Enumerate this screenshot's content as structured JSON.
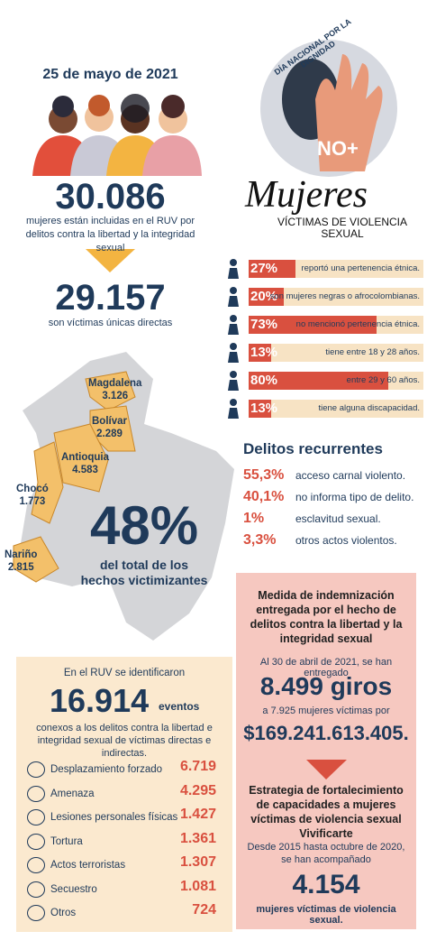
{
  "header": {
    "date": "25 de mayo de 2021",
    "total_women": {
      "number": "30.086",
      "text": "mujeres están incluidas en el RUV por delitos contra la libertad y la integridad sexual"
    },
    "direct_victims": {
      "number": "29.157",
      "text": "son víctimas únicas directas"
    }
  },
  "logo": {
    "arc_text": "DÍA NACIONAL POR LA DIGNIDAD",
    "slogan": "NO+",
    "title": "Mujeres",
    "subtitle": "VÍCTIMAS DE VIOLENCIA SEXUAL"
  },
  "profile": [
    {
      "value": 27,
      "label": "27%",
      "text": "reportó una pertenencia étnica."
    },
    {
      "value": 20,
      "label": "20%",
      "text": "son mujeres negras o afrocolombianas."
    },
    {
      "value": 73,
      "label": "73%",
      "text": "no mencionó pertenencia étnica."
    },
    {
      "value": 13,
      "label": "13%",
      "text": "tiene entre 18 y 28 años."
    },
    {
      "value": 80,
      "label": "80%",
      "text": "entre 29 y 60 años."
    },
    {
      "value": 13,
      "label": "13%",
      "text": "tiene alguna discapacidad."
    }
  ],
  "map": {
    "departments": [
      {
        "name": "Magdalena",
        "value": "3.126"
      },
      {
        "name": "Bolívar",
        "value": "2.289"
      },
      {
        "name": "Antioquia",
        "value": "4.583"
      },
      {
        "name": "Chocó",
        "value": "1.773"
      },
      {
        "name": "Nariño",
        "value": "2.815"
      }
    ],
    "percent": "48%",
    "text": "del total de los hechos victimizantes"
  },
  "crimes": {
    "title": "Delitos recurrentes",
    "items": [
      {
        "percent": "55,3%",
        "text": "acceso carnal violento."
      },
      {
        "percent": "40,1%",
        "text": "no informa tipo de delito."
      },
      {
        "percent": "1%",
        "text": "esclavitud sexual."
      },
      {
        "percent": "3,3%",
        "text": "otros actos violentos."
      }
    ]
  },
  "events": {
    "intro": "En el RUV se identificaron",
    "number": "16.914",
    "unit": "eventos",
    "text": "conexos a los delitos contra la libertad e integridad sexual de víctimas directas e indirectas.",
    "items": [
      {
        "name": "Desplazamiento forzado",
        "value": "6.719"
      },
      {
        "name": "Amenaza",
        "value": "4.295"
      },
      {
        "name": "Lesiones personales físicas",
        "value": "1.427"
      },
      {
        "name": "Tortura",
        "value": "1.361"
      },
      {
        "name": "Actos terroristas",
        "value": "1.307"
      },
      {
        "name": "Secuestro",
        "value": "1.081"
      },
      {
        "name": "Otros",
        "value": "724"
      }
    ]
  },
  "compensation": {
    "title": "Medida de indemnización entregada por el hecho de delitos contra la libertad y la integridad sexual",
    "intro": "Al 30 de abril de 2021, se han entregado",
    "transfers": "8.499 giros",
    "recipients": "a 7.925 mujeres víctimas por",
    "amount": "$169.241.613.405."
  },
  "strategy": {
    "title": "Estrategia de fortalecimiento de capacidades a mujeres víctimas de violencia sexual Vivificarte",
    "intro": "Desde 2015 hasta octubre de 2020, se han acompañado",
    "number": "4.154",
    "text": "mujeres víctimas de violencia sexual."
  }
}
